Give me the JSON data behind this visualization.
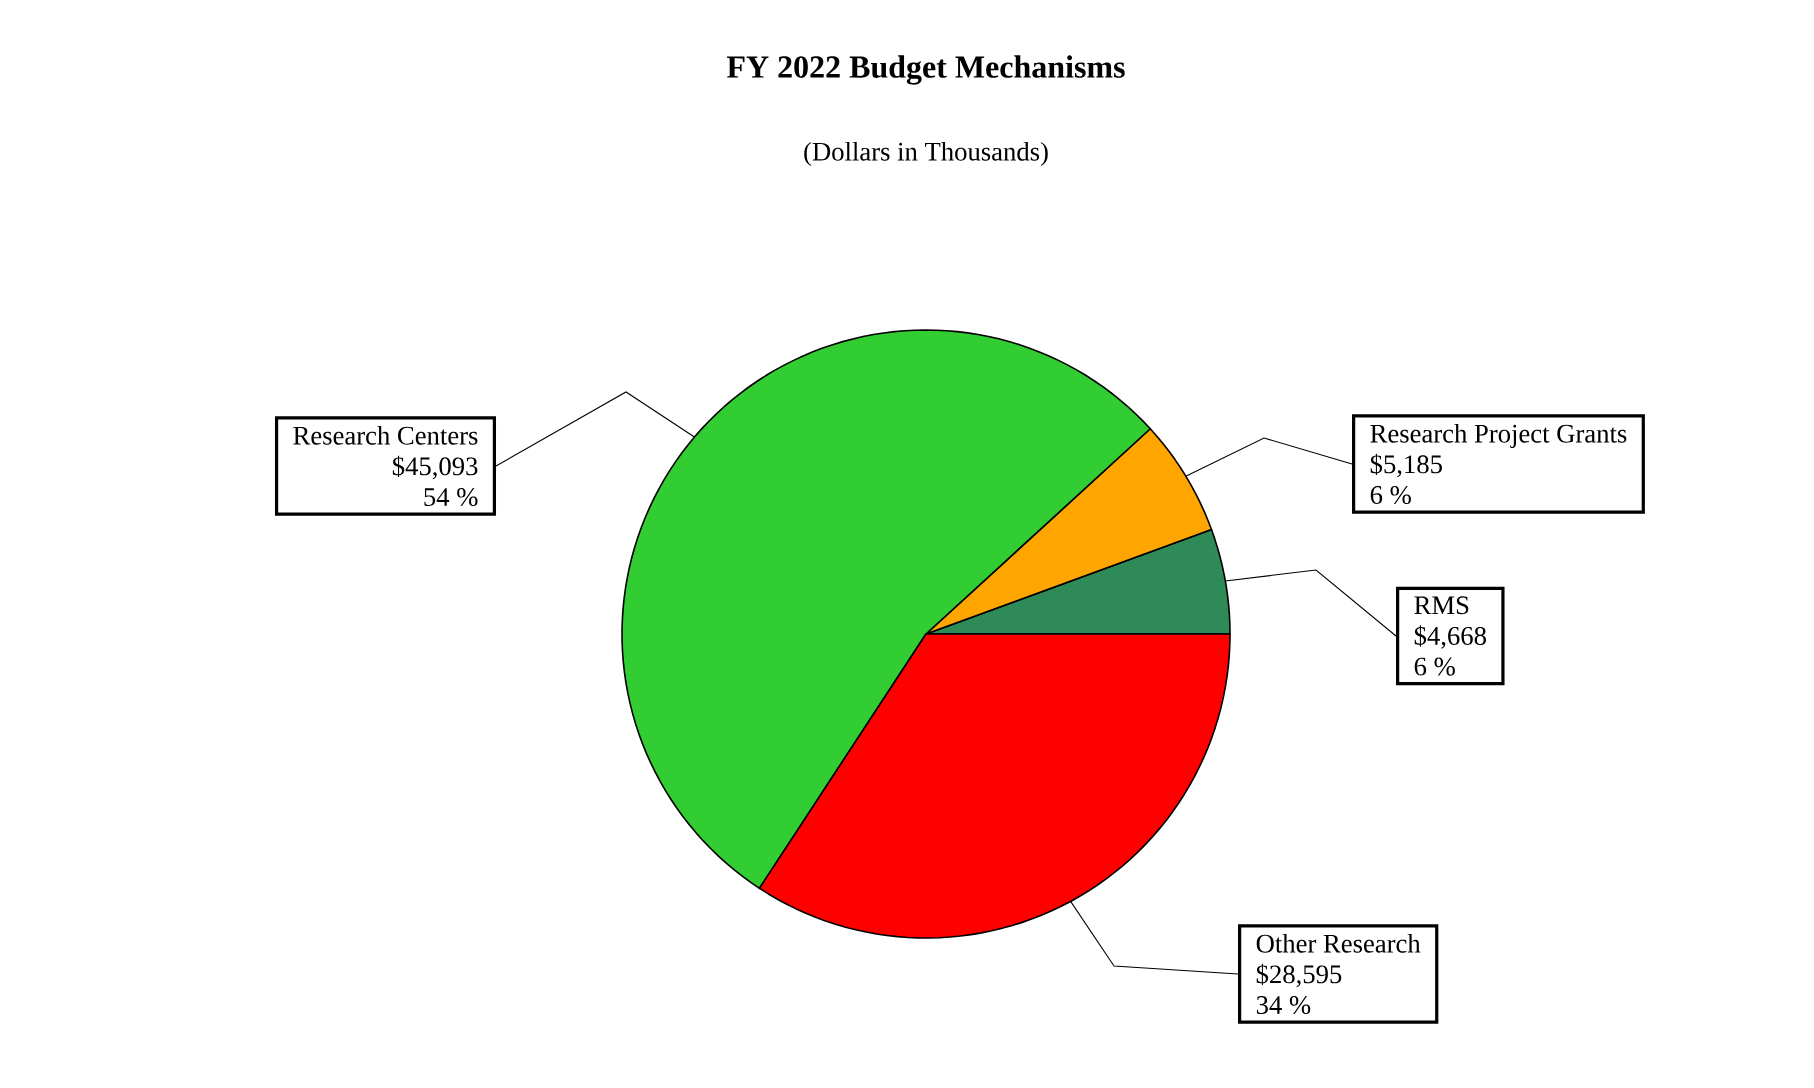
{
  "chart_data": {
    "type": "pie",
    "title": "FY 2022 Budget Mechanisms",
    "subtitle": "(Dollars in Thousands)",
    "categories": [
      "RMS",
      "Research Project Grants",
      "Research Centers",
      "Other Research"
    ],
    "values": [
      4668,
      5185,
      45093,
      28595
    ],
    "colors": [
      "#2e8b57",
      "#ffa500",
      "#32cd32",
      "#ff0000"
    ],
    "value_labels": [
      "$4,668",
      "$5,185",
      "$45,093",
      "$28,595"
    ],
    "annotations": [
      "6 %",
      "6 %",
      "54 %",
      "34 %"
    ],
    "legend": false
  }
}
